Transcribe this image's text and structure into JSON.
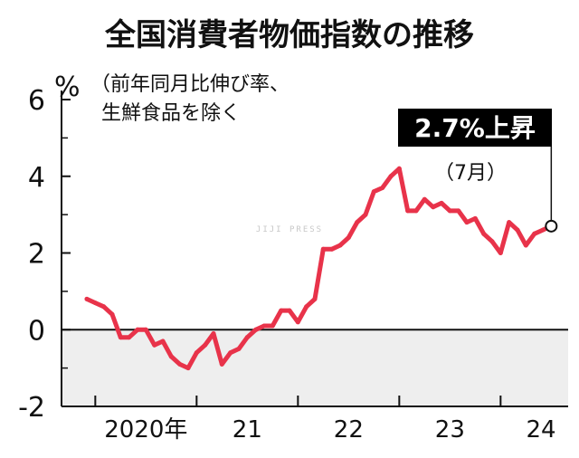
{
  "chart_data": {
    "type": "line",
    "title": "全国消費者物価指数の推移",
    "ylabel": "%",
    "note_lines": [
      "（前年同月比伸び率、",
      "生鮮食品を除く"
    ],
    "ylim": [
      -2,
      6
    ],
    "yticks": [
      "6",
      "4",
      "2",
      "0",
      "-2"
    ],
    "xtick_labels": [
      "2020年",
      "21",
      "22",
      "23",
      "24"
    ],
    "negative_region_shaded": true,
    "grid": false,
    "series": [
      {
        "color": "#e8334a",
        "x": [
          "2019-12",
          "2020-01",
          "2020-02",
          "2020-03",
          "2020-04",
          "2020-05",
          "2020-06",
          "2020-07",
          "2020-08",
          "2020-09",
          "2020-10",
          "2020-11",
          "2020-12",
          "2021-01",
          "2021-02",
          "2021-03",
          "2021-04",
          "2021-05",
          "2021-06",
          "2021-07",
          "2021-08",
          "2021-09",
          "2021-10",
          "2021-11",
          "2021-12",
          "2022-01",
          "2022-02",
          "2022-03",
          "2022-04",
          "2022-05",
          "2022-06",
          "2022-07",
          "2022-08",
          "2022-09",
          "2022-10",
          "2022-11",
          "2022-12",
          "2023-01",
          "2023-02",
          "2023-03",
          "2023-04",
          "2023-05",
          "2023-06",
          "2023-07",
          "2023-08",
          "2023-09",
          "2023-10",
          "2023-11",
          "2023-12",
          "2024-01",
          "2024-02",
          "2024-03",
          "2024-04",
          "2024-05",
          "2024-06",
          "2024-07"
        ],
        "values": [
          0.8,
          0.7,
          0.6,
          0.4,
          -0.2,
          -0.2,
          0.0,
          0.0,
          -0.4,
          -0.3,
          -0.7,
          -0.9,
          -1.0,
          -0.6,
          -0.4,
          -0.1,
          -0.9,
          -0.6,
          -0.5,
          -0.2,
          0.0,
          0.1,
          0.1,
          0.5,
          0.5,
          0.2,
          0.6,
          0.8,
          2.1,
          2.1,
          2.2,
          2.4,
          2.8,
          3.0,
          3.6,
          3.7,
          4.0,
          4.2,
          3.1,
          3.1,
          3.4,
          3.2,
          3.3,
          3.1,
          3.1,
          2.8,
          2.9,
          2.5,
          2.3,
          2.0,
          2.8,
          2.6,
          2.2,
          2.5,
          2.6,
          2.7
        ]
      }
    ],
    "callout": {
      "label": "2.7%上昇",
      "sub": "（7月）",
      "bg_color": "#000000"
    },
    "watermark": "JIJI PRESS"
  }
}
